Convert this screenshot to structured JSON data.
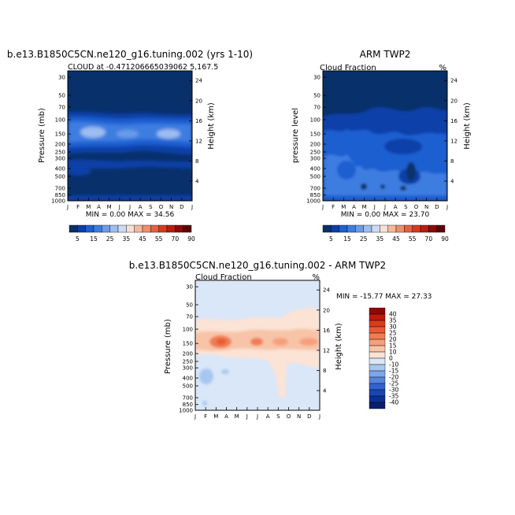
{
  "chart_data": [
    {
      "type": "heatmap",
      "title": "b.e13.B1850C5CN.ne120_g16.tuning.002 (yrs 1-10)",
      "subtitle_left": "CLOUD at -0.471206665039062 5,167.5",
      "subtitle_right": "",
      "ylabel": "Pressure (mb)",
      "ylabel_right": "Height (km)",
      "stats": "MIN =   0.00 MAX =  34.56",
      "min": 0.0,
      "max": 34.56,
      "x_ticks": [
        "J",
        "F",
        "M",
        "A",
        "M",
        "J",
        "J",
        "A",
        "S",
        "O",
        "N",
        "D",
        "J"
      ],
      "y_ticks": [
        "30",
        "50",
        "70",
        "100",
        "150",
        "200",
        "250",
        "300",
        "400",
        "500",
        "700",
        "850",
        "1000"
      ],
      "y_ticks_right": [
        "24",
        "20",
        "16",
        "12",
        "8",
        "4"
      ],
      "colorbar": {
        "levels": [
          "5",
          "15",
          "25",
          "35",
          "45",
          "55",
          "70",
          "90"
        ],
        "colors": [
          "#08306b",
          "#0b3fa8",
          "#1f5fd1",
          "#3c7de0",
          "#6b9ce9",
          "#9dbdf0",
          "#c9dbf6",
          "#f5e1d3",
          "#f5b89a",
          "#f08e6c",
          "#e5613f",
          "#d63b1e",
          "#b81d0e",
          "#8b0a05",
          "#5e0303"
        ]
      }
    },
    {
      "type": "heatmap",
      "title": "ARM TWP2",
      "subtitle_left": "Cloud Fraction",
      "subtitle_right": "%",
      "ylabel": "pressure level",
      "ylabel_right": "Height (km)",
      "stats": "MIN =   0.00 MAX =  23.70",
      "min": 0.0,
      "max": 23.7,
      "x_ticks": [
        "J",
        "F",
        "M",
        "A",
        "M",
        "J",
        "J",
        "A",
        "S",
        "O",
        "N",
        "D",
        "J"
      ],
      "y_ticks": [
        "30",
        "50",
        "70",
        "100",
        "150",
        "200",
        "250",
        "300",
        "400",
        "500",
        "700",
        "850",
        "1000"
      ],
      "y_ticks_right": [
        "24",
        "20",
        "16",
        "12",
        "8",
        "4"
      ],
      "colorbar": {
        "levels": [
          "5",
          "15",
          "25",
          "35",
          "45",
          "55",
          "70",
          "90"
        ],
        "colors": [
          "#08306b",
          "#0b3fa8",
          "#1f5fd1",
          "#3c7de0",
          "#6b9ce9",
          "#9dbdf0",
          "#c9dbf6",
          "#f5e1d3",
          "#f5b89a",
          "#f08e6c",
          "#e5613f",
          "#d63b1e",
          "#b81d0e",
          "#8b0a05",
          "#5e0303"
        ]
      }
    },
    {
      "type": "heatmap",
      "title": "b.e13.B1850C5CN.ne120_g16.tuning.002 - ARM TWP2",
      "subtitle_left": "Cloud Fraction",
      "subtitle_right": "%",
      "ylabel": "Pressure (mb)",
      "ylabel_right": "Height (km)",
      "stats": "MIN = -15.77 MAX =  27.33",
      "min": -15.77,
      "max": 27.33,
      "x_ticks": [
        "J",
        "F",
        "M",
        "A",
        "M",
        "J",
        "J",
        "A",
        "S",
        "O",
        "N",
        "D",
        "J"
      ],
      "y_ticks": [
        "30",
        "50",
        "70",
        "100",
        "150",
        "200",
        "250",
        "300",
        "400",
        "500",
        "700",
        "850",
        "1000"
      ],
      "y_ticks_right": [
        "24",
        "20",
        "16",
        "12",
        "8",
        "4"
      ],
      "colorbar": {
        "levels": [
          "40",
          "35",
          "30",
          "25",
          "20",
          "15",
          "10",
          "0",
          "-10",
          "-15",
          "-20",
          "-25",
          "-30",
          "-35",
          "-40"
        ],
        "colors": [
          "#8b0a05",
          "#c0190c",
          "#dc3a1c",
          "#e85a32",
          "#f07c52",
          "#f5a07c",
          "#f8c4a8",
          "#fbe3d6",
          "#d9e7f8",
          "#a9c6f0",
          "#7ea6e8",
          "#5584dc",
          "#3362cc",
          "#1a45b3",
          "#0b2f92",
          "#08206b"
        ]
      }
    }
  ]
}
